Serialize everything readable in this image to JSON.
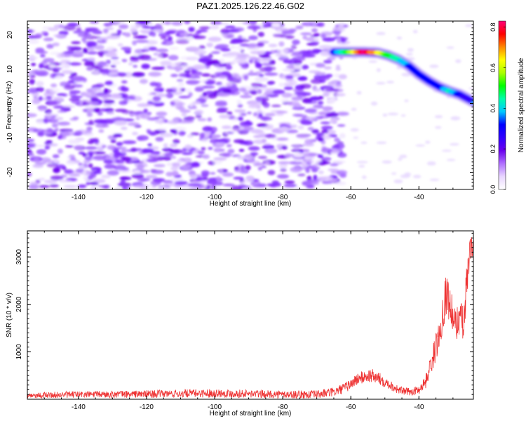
{
  "title": "PAZ1.2025.126.22.46.G02",
  "chart_data": [
    {
      "type": "heatmap",
      "title": "PAZ1.2025.126.22.46.G02",
      "xlabel": "Height of straight line (km)",
      "ylabel": "Frequency (Hz)",
      "xlim": [
        -155,
        -24
      ],
      "ylim": [
        -25,
        24
      ],
      "xticks": [
        -140,
        -120,
        -100,
        -80,
        -60,
        -40
      ],
      "yticks": [
        -20,
        -10,
        0,
        10,
        20
      ],
      "grid": false,
      "colorbar": {
        "label": "Normalized spectral amplitude",
        "range": [
          0,
          0.83
        ],
        "ticks": [
          0.0,
          0.2,
          0.4,
          0.6,
          0.8
        ],
        "colors": [
          "#ffffff",
          "#e8d6ff",
          "#b070ff",
          "#6a00ee",
          "#3000ff",
          "#0000ff",
          "#00c8ff",
          "#00ffaa",
          "#00ff00",
          "#aaff00",
          "#ffff00",
          "#ff8800",
          "#ff0000",
          "#ff0077"
        ]
      },
      "ridge": {
        "name": "signal",
        "x": [
          -65,
          -60,
          -56,
          -52,
          -49,
          -46,
          -43,
          -40,
          -37,
          -34,
          -31,
          -28,
          -24
        ],
        "y": [
          15,
          15,
          15,
          14.8,
          14,
          12.8,
          11,
          8.5,
          6.5,
          4.8,
          3.6,
          2.6,
          0.5
        ],
        "amplitude": [
          0.35,
          0.55,
          0.8,
          0.65,
          0.5,
          0.42,
          0.35,
          0.3,
          0.3,
          0.3,
          0.45,
          0.3,
          0.2
        ]
      },
      "noise_region": {
        "x_end": -62,
        "amplitude_range": [
          0.02,
          0.12
        ]
      }
    },
    {
      "type": "line",
      "xlabel": "Height of straight line (km)",
      "ylabel": "SNR (10 * v/v)",
      "xlim": [
        -155,
        -24
      ],
      "ylim": [
        0,
        3550
      ],
      "xticks": [
        -140,
        -120,
        -100,
        -80,
        -60,
        -40
      ],
      "yticks": [
        1000,
        2000,
        3000
      ],
      "grid": false,
      "series": [
        {
          "color": "#ee3333",
          "x": [
            -155,
            -140,
            -120,
            -100,
            -80,
            -70,
            -65,
            -62,
            -60,
            -58,
            -56,
            -54,
            -52,
            -50,
            -48,
            -46,
            -44,
            -42,
            -40,
            -38,
            -36,
            -35,
            -34,
            -33,
            -32,
            -31,
            -30,
            -29,
            -28,
            -27,
            -26,
            -25,
            -24
          ],
          "y": [
            80,
            100,
            110,
            130,
            100,
            100,
            150,
            230,
            320,
            430,
            470,
            500,
            440,
            380,
            280,
            200,
            160,
            160,
            200,
            380,
            850,
            1100,
            1350,
            1850,
            2250,
            2050,
            1700,
            1550,
            1800,
            1500,
            2300,
            3200,
            3200
          ],
          "noise_amplitude": [
            60,
            70,
            80,
            90,
            80,
            90,
            100,
            110,
            120,
            130,
            140,
            150,
            140,
            120,
            100,
            90,
            80,
            80,
            100,
            150,
            250,
            300,
            350,
            400,
            500,
            400,
            400,
            350,
            400,
            450,
            500,
            250,
            200
          ]
        }
      ]
    }
  ]
}
